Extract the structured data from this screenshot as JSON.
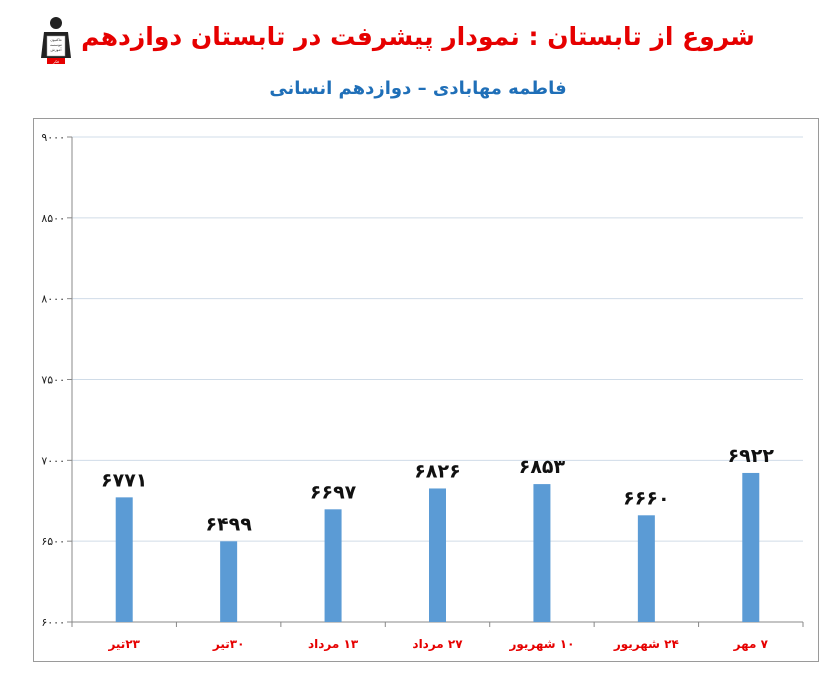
{
  "header": {
    "title": "شروع از تابستان : نمودار پیشرفت در تابستان دوازدهم",
    "subtitle": "فاطمه مهابادی – دوازدهم انسانی"
  },
  "logo": {
    "icon": "graduate-logo-icon",
    "text_lines": [
      "ماکتبون",
      "موسسه",
      "آموزش",
      "فکر"
    ]
  },
  "colors": {
    "title": "#e60000",
    "subtitle": "#1f6fb8",
    "bar": "#5b9bd5",
    "category_label": "#e60000",
    "grid": "#d0dce8"
  },
  "chart_data": {
    "type": "bar",
    "categories": [
      "۲۳تیر",
      "۳۰تیر",
      "۱۳ مرداد",
      "۲۷ مرداد",
      "۱۰ شهریور",
      "۲۴ شهریور",
      "۷ مهر"
    ],
    "values": [
      6771,
      6499,
      6697,
      6826,
      6853,
      6660,
      6922
    ],
    "data_labels": [
      "۶۷۷۱",
      "۶۴۹۹",
      "۶۶۹۷",
      "۶۸۲۶",
      "۶۸۵۳",
      "۶۶۶۰",
      "۶۹۲۲"
    ],
    "ylim": [
      6000,
      9000
    ],
    "yticks": [
      6000,
      6500,
      7000,
      7500,
      8000,
      8500,
      9000
    ],
    "ytick_labels": [
      "۶۰۰۰",
      "۶۵۰۰",
      "۷۰۰۰",
      "۷۵۰۰",
      "۸۰۰۰",
      "۸۵۰۰",
      "۹۰۰۰"
    ],
    "grid": true
  }
}
